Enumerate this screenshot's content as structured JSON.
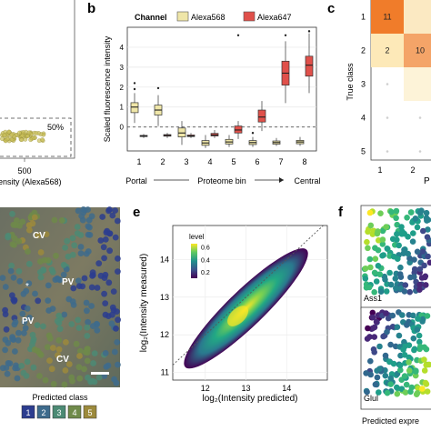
{
  "panels": {
    "b": "b",
    "c": "c",
    "e": "e",
    "f": "f"
  },
  "panel_a": {
    "pct_label": "50%",
    "x_tick": "500",
    "x_label_partial": "ensity (Alexa568)"
  },
  "panel_b": {
    "chart_data": {
      "type": "box",
      "legend_title": "Channel",
      "legend": [
        {
          "name": "Alexa568",
          "color": "#efe6a8"
        },
        {
          "name": "Alexa647",
          "color": "#e0504a"
        }
      ],
      "ylabel": "Scaled fluorescence intensity",
      "xlabel": "Proteome bin",
      "categories": [
        "1",
        "2",
        "3",
        "4",
        "5",
        "6",
        "7",
        "8"
      ],
      "end_labels": {
        "left": "Portal",
        "right": "Central"
      },
      "yticks": [
        0,
        1,
        2,
        3,
        4
      ],
      "ylim": [
        -1.2,
        5.0
      ],
      "series": [
        {
          "name": "Alexa568",
          "median": [
            1.0,
            0.85,
            -0.3,
            -0.8,
            -0.75,
            -0.78,
            -0.78,
            -0.75
          ],
          "q1": [
            0.72,
            0.6,
            -0.5,
            -0.92,
            -0.85,
            -0.88,
            -0.86,
            -0.84
          ],
          "q3": [
            1.22,
            1.1,
            -0.05,
            -0.68,
            -0.62,
            -0.68,
            -0.7,
            -0.67
          ],
          "wlo": [
            0.2,
            0.05,
            -0.9,
            -1.05,
            -1.0,
            -1.0,
            -0.95,
            -0.95
          ],
          "whi": [
            1.7,
            1.6,
            0.3,
            -0.4,
            -0.4,
            -0.5,
            -0.55,
            -0.5
          ]
        },
        {
          "name": "Alexa647",
          "median": [
            -0.45,
            -0.42,
            -0.45,
            -0.4,
            -0.15,
            0.5,
            2.7,
            3.1
          ],
          "q1": [
            -0.48,
            -0.46,
            -0.48,
            -0.45,
            -0.3,
            0.25,
            2.1,
            2.55
          ],
          "q3": [
            -0.42,
            -0.38,
            -0.4,
            -0.32,
            0.05,
            0.85,
            3.3,
            3.55
          ],
          "wlo": [
            -0.55,
            -0.55,
            -0.55,
            -0.55,
            -0.6,
            -0.2,
            1.2,
            1.7
          ],
          "whi": [
            -0.35,
            -0.3,
            -0.3,
            -0.15,
            0.3,
            1.3,
            4.3,
            4.7
          ]
        }
      ]
    }
  },
  "panel_c": {
    "ylabel": "True class",
    "y_ticks": [
      "1",
      "2",
      "3",
      "4",
      "5"
    ],
    "x_ticks": [
      "1",
      "2"
    ],
    "x_label_partial": "P",
    "cells": [
      {
        "row": 1,
        "col": 1,
        "value": "11",
        "color": "#f07c2a"
      },
      {
        "row": 1,
        "col": 2,
        "value": "",
        "color": "#fbe9c2"
      },
      {
        "row": 2,
        "col": 1,
        "value": "2",
        "color": "#fde9b8"
      },
      {
        "row": 2,
        "col": 2,
        "value": "10",
        "color": "#f4a468"
      },
      {
        "row": 3,
        "col": 2,
        "value": "",
        "color": "#fdf3d8"
      }
    ]
  },
  "panel_d": {
    "zone_labels": [
      "CV",
      "PV",
      "PV",
      "CV"
    ],
    "legend_title": "Predicted class",
    "classes": [
      {
        "label": "1",
        "color": "#2c3d8f"
      },
      {
        "label": "2",
        "color": "#3e6b8c"
      },
      {
        "label": "3",
        "color": "#4c8a74"
      },
      {
        "label": "4",
        "color": "#6f8a4a"
      },
      {
        "label": "5",
        "color": "#9c8a3c"
      }
    ]
  },
  "panel_e": {
    "chart_data": {
      "type": "density",
      "xlabel": "log₂(Intensity predicted)",
      "ylabel": "log₂(Intensity measured)",
      "xticks": [
        12,
        13,
        14
      ],
      "yticks": [
        11,
        12,
        13,
        14
      ],
      "xlim": [
        11.2,
        15.0
      ],
      "ylim": [
        10.8,
        14.9
      ],
      "colorbar": {
        "title": "level",
        "ticks": [
          0.2,
          0.4,
          0.6
        ]
      },
      "identity_line": true
    }
  },
  "panel_f": {
    "map_labels": [
      "Ass1",
      "Glul"
    ],
    "caption_partial": "Predicted expre"
  }
}
